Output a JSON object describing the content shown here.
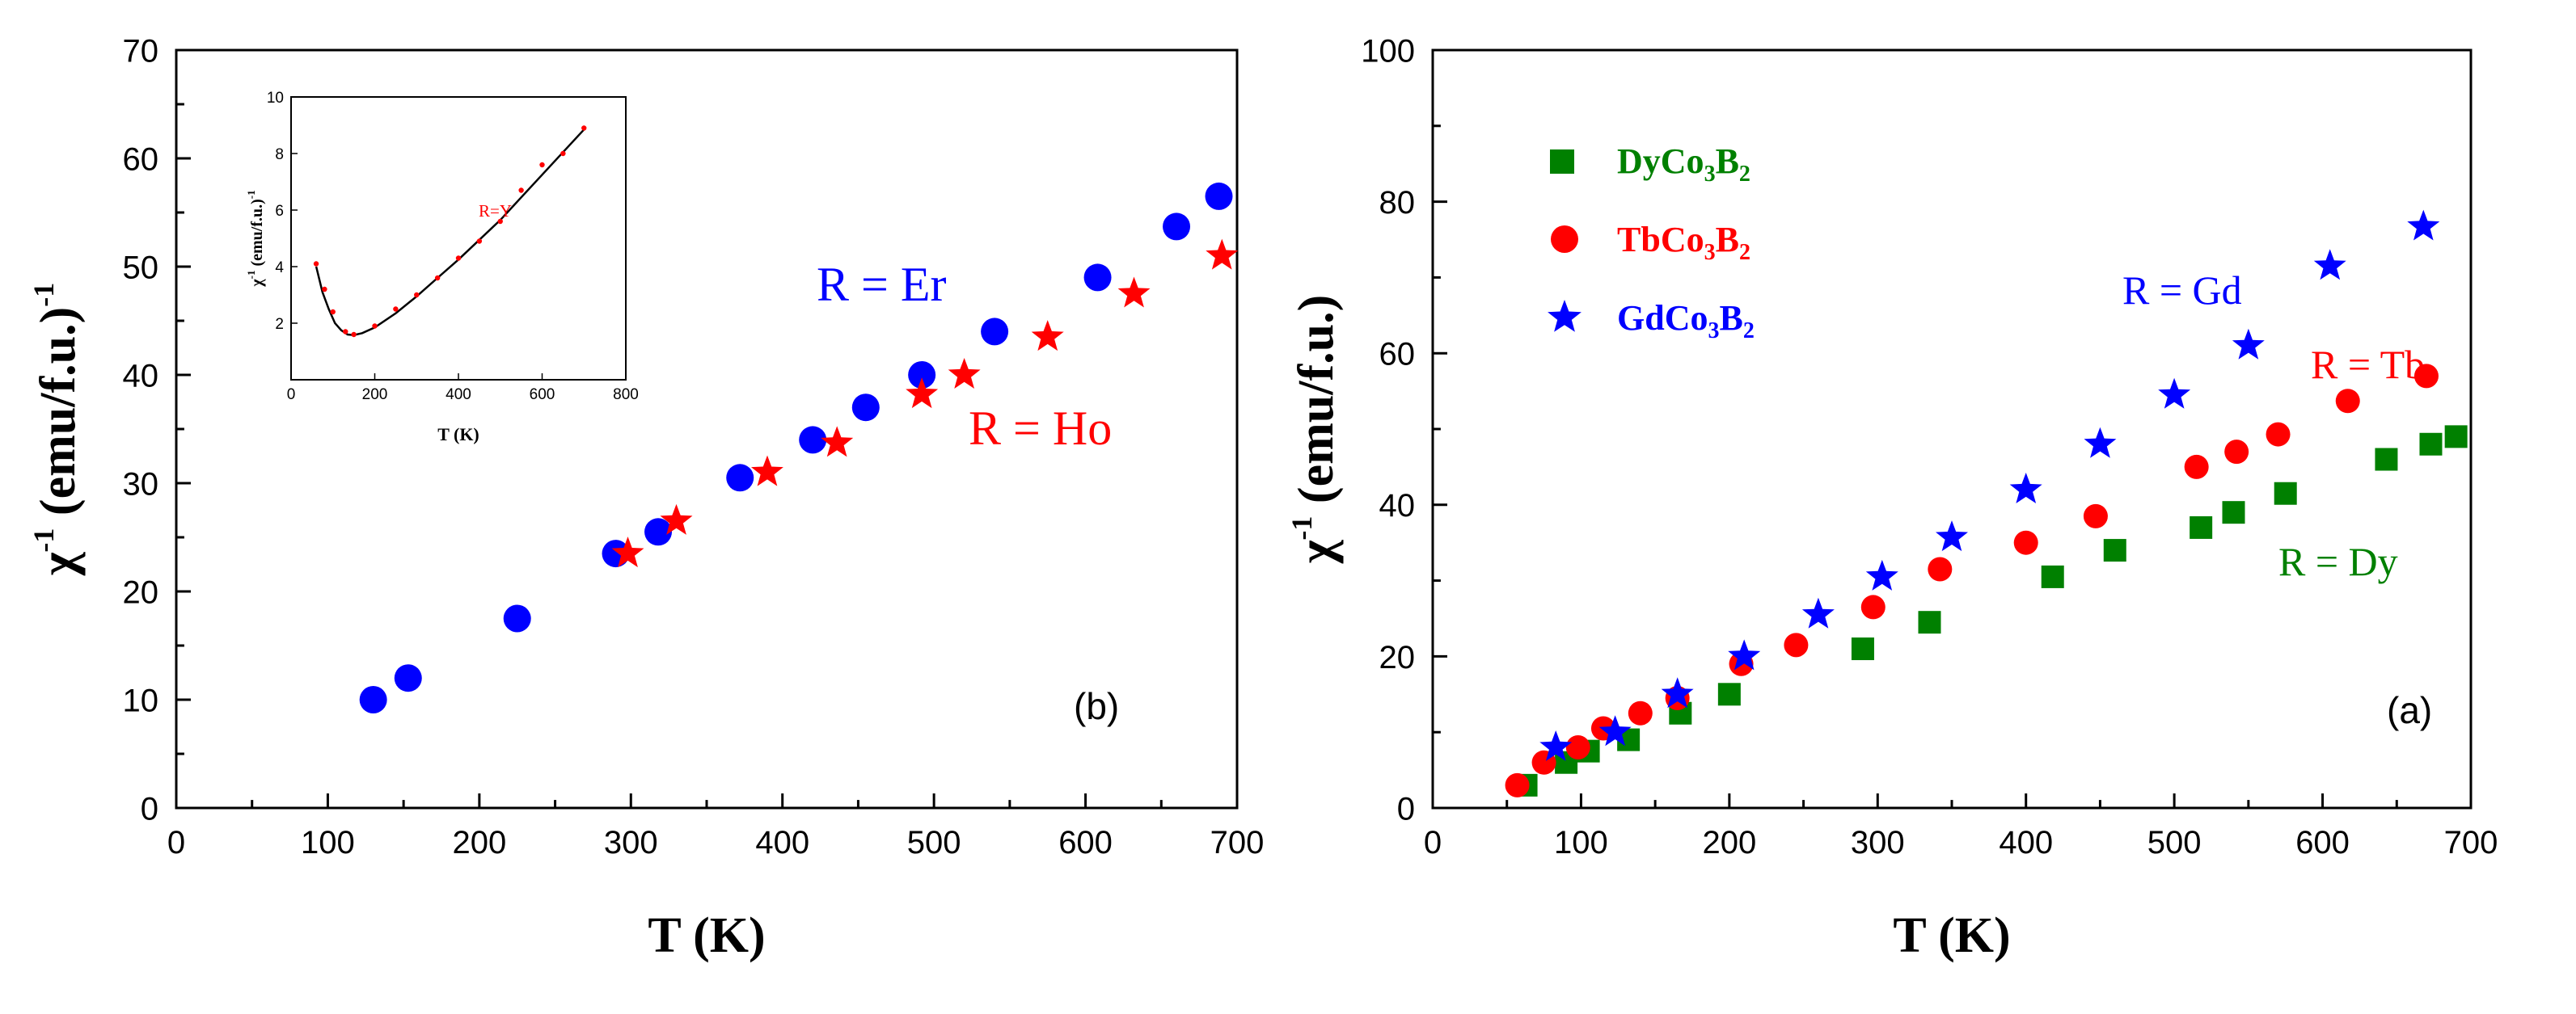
{
  "chart_data": [
    {
      "id": "b",
      "type": "scatter",
      "panel_label": "(b)",
      "xlabel": "T (K)",
      "ylabel_main": "χ",
      "ylabel_exp": "-1",
      "ylabel_rest": " (emu/f.u.)",
      "ylabel_exp2": "-1",
      "xlim": [
        0,
        700
      ],
      "ylim": [
        0,
        70
      ],
      "xticks": [
        0,
        100,
        200,
        300,
        400,
        500,
        600,
        700
      ],
      "yticks": [
        0,
        10,
        20,
        30,
        40,
        50,
        60,
        70
      ],
      "series": [
        {
          "name": "R = Er",
          "marker": "circle",
          "color": "#0000ff",
          "x": [
            130,
            153,
            225,
            290,
            318,
            372,
            420,
            455,
            492,
            540,
            608,
            660,
            688
          ],
          "y": [
            10,
            12,
            17.5,
            23.5,
            25.5,
            30.5,
            34,
            37,
            40,
            44,
            49,
            53.7,
            56.5
          ]
        },
        {
          "name": "R = Ho",
          "marker": "star",
          "color": "#ff0000",
          "x": [
            298,
            330,
            390,
            436,
            492,
            520,
            575,
            632,
            690
          ],
          "y": [
            23.5,
            26.5,
            31,
            33.7,
            38.2,
            40,
            43.5,
            47.5,
            51
          ]
        }
      ],
      "annotations": [
        {
          "text": "R = Er",
          "color": "#0000ff"
        },
        {
          "text": "R = Ho",
          "color": "#ff0000"
        }
      ],
      "inset": {
        "type": "scatter+line",
        "xlabel": "T (K)",
        "ylabel_main": "χ",
        "ylabel_exp": "-1",
        "ylabel_rest": " (emu/f.u.)",
        "ylabel_exp2": "-1",
        "label": "R=Y",
        "xlim": [
          0,
          800
        ],
        "ylim": [
          0,
          10
        ],
        "xticks": [
          0,
          200,
          400,
          600,
          800
        ],
        "yticks": [
          2,
          4,
          6,
          8,
          10
        ],
        "points": {
          "x": [
            60,
            80,
            100,
            130,
            150,
            200,
            250,
            300,
            350,
            400,
            450,
            500,
            550,
            600,
            650,
            700
          ],
          "y": [
            4.1,
            3.2,
            2.4,
            1.7,
            1.6,
            1.9,
            2.5,
            3.0,
            3.6,
            4.3,
            4.9,
            5.6,
            6.7,
            7.6,
            8.0,
            8.9
          ]
        },
        "fit": {
          "x": [
            60,
            75,
            90,
            105,
            120,
            135,
            150,
            170,
            200,
            250,
            300,
            350,
            400,
            450,
            500,
            550,
            600,
            650,
            700
          ],
          "y": [
            4.0,
            3.1,
            2.5,
            2.0,
            1.75,
            1.6,
            1.58,
            1.65,
            1.85,
            2.35,
            2.95,
            3.6,
            4.25,
            4.95,
            5.65,
            6.45,
            7.25,
            8.05,
            8.85
          ]
        }
      }
    },
    {
      "id": "a",
      "type": "scatter",
      "panel_label": "(a)",
      "xlabel": "T (K)",
      "ylabel_main": "χ",
      "ylabel_exp": "-1",
      "ylabel_rest": " (emu/f.u.)",
      "xlim": [
        0,
        700
      ],
      "ylim": [
        0,
        100
      ],
      "xticks": [
        0,
        100,
        200,
        300,
        400,
        500,
        600,
        700
      ],
      "yticks": [
        0,
        20,
        40,
        60,
        80,
        100
      ],
      "legend": [
        {
          "base": "DyCo",
          "sub1": "3",
          "mid": "B",
          "sub2": "2",
          "color": "#008000",
          "marker": "square"
        },
        {
          "base": "TbCo",
          "sub1": "3",
          "mid": "B",
          "sub2": "2",
          "color": "#ff0000",
          "marker": "circle"
        },
        {
          "base": "GdCo",
          "sub1": "3",
          "mid": "B",
          "sub2": "2",
          "color": "#0000ff",
          "marker": "star"
        }
      ],
      "series": [
        {
          "name": "DyCo3B2",
          "marker": "square",
          "color": "#008000",
          "x": [
            63,
            90,
            105,
            132,
            167,
            200,
            290,
            335,
            418,
            460,
            518,
            540,
            575,
            643,
            673,
            690
          ],
          "y": [
            3,
            6,
            7.5,
            9,
            12.5,
            15,
            21,
            24.5,
            30.5,
            34,
            37,
            39,
            41.5,
            46,
            48,
            49
          ]
        },
        {
          "name": "TbCo3B2",
          "marker": "circle",
          "color": "#ff0000",
          "x": [
            57,
            75,
            98,
            115,
            140,
            165,
            208,
            245,
            297,
            342,
            400,
            447,
            515,
            542,
            570,
            617,
            670
          ],
          "y": [
            3,
            6,
            8,
            10.5,
            12.5,
            14.5,
            19,
            21.5,
            26.5,
            31.5,
            35,
            38.5,
            45,
            47,
            49.3,
            53.7,
            57
          ]
        },
        {
          "name": "GdCo3B2",
          "marker": "star",
          "color": "#0000ff",
          "x": [
            83,
            123,
            165,
            210,
            260,
            303,
            350,
            400,
            450,
            500,
            550,
            605,
            668
          ],
          "y": [
            8,
            10,
            15,
            20,
            25.5,
            30.5,
            35.7,
            42,
            48,
            54.5,
            61,
            71.5,
            76.7
          ]
        }
      ],
      "annotations": [
        {
          "text": "R = Gd",
          "color": "#0000ff"
        },
        {
          "text": "R = Tb",
          "color": "#ff0000"
        },
        {
          "text": "R = Dy",
          "color": "#008000"
        }
      ]
    }
  ]
}
